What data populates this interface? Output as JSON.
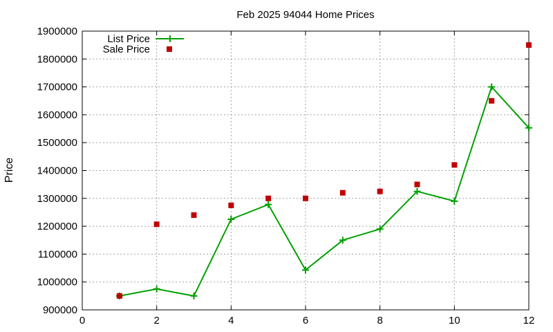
{
  "chart_data": {
    "type": "line",
    "title": "Feb 2025 94044 Home Prices",
    "xlabel": "",
    "ylabel": "Price",
    "xlim": [
      0,
      12
    ],
    "ylim": [
      900000,
      1900000
    ],
    "x_ticks": [
      "0",
      "2",
      "4",
      "6",
      "8",
      "10",
      "12"
    ],
    "y_ticks": [
      "900000",
      "1000000",
      "1100000",
      "1200000",
      "1300000",
      "1400000",
      "1500000",
      "1600000",
      "1700000",
      "1800000",
      "1900000"
    ],
    "grid": true,
    "legend_position": "top-left",
    "series": [
      {
        "name": "List Price",
        "style": "line-plus",
        "color": "#00a000",
        "x": [
          1,
          2,
          3,
          4,
          5,
          6,
          7,
          8,
          9,
          10,
          11,
          12
        ],
        "y": [
          950000,
          975000,
          950000,
          1225000,
          1278000,
          1043000,
          1150000,
          1190000,
          1325000,
          1290000,
          1700000,
          1553000
        ]
      },
      {
        "name": "Sale Price",
        "style": "square-points",
        "color": "#c00000",
        "x": [
          1,
          2,
          3,
          4,
          5,
          6,
          7,
          8,
          9,
          10,
          11,
          12
        ],
        "y": [
          950000,
          1207000,
          1240000,
          1275000,
          1300000,
          1300000,
          1320000,
          1325000,
          1350000,
          1420000,
          1650000,
          1850000
        ]
      }
    ]
  }
}
